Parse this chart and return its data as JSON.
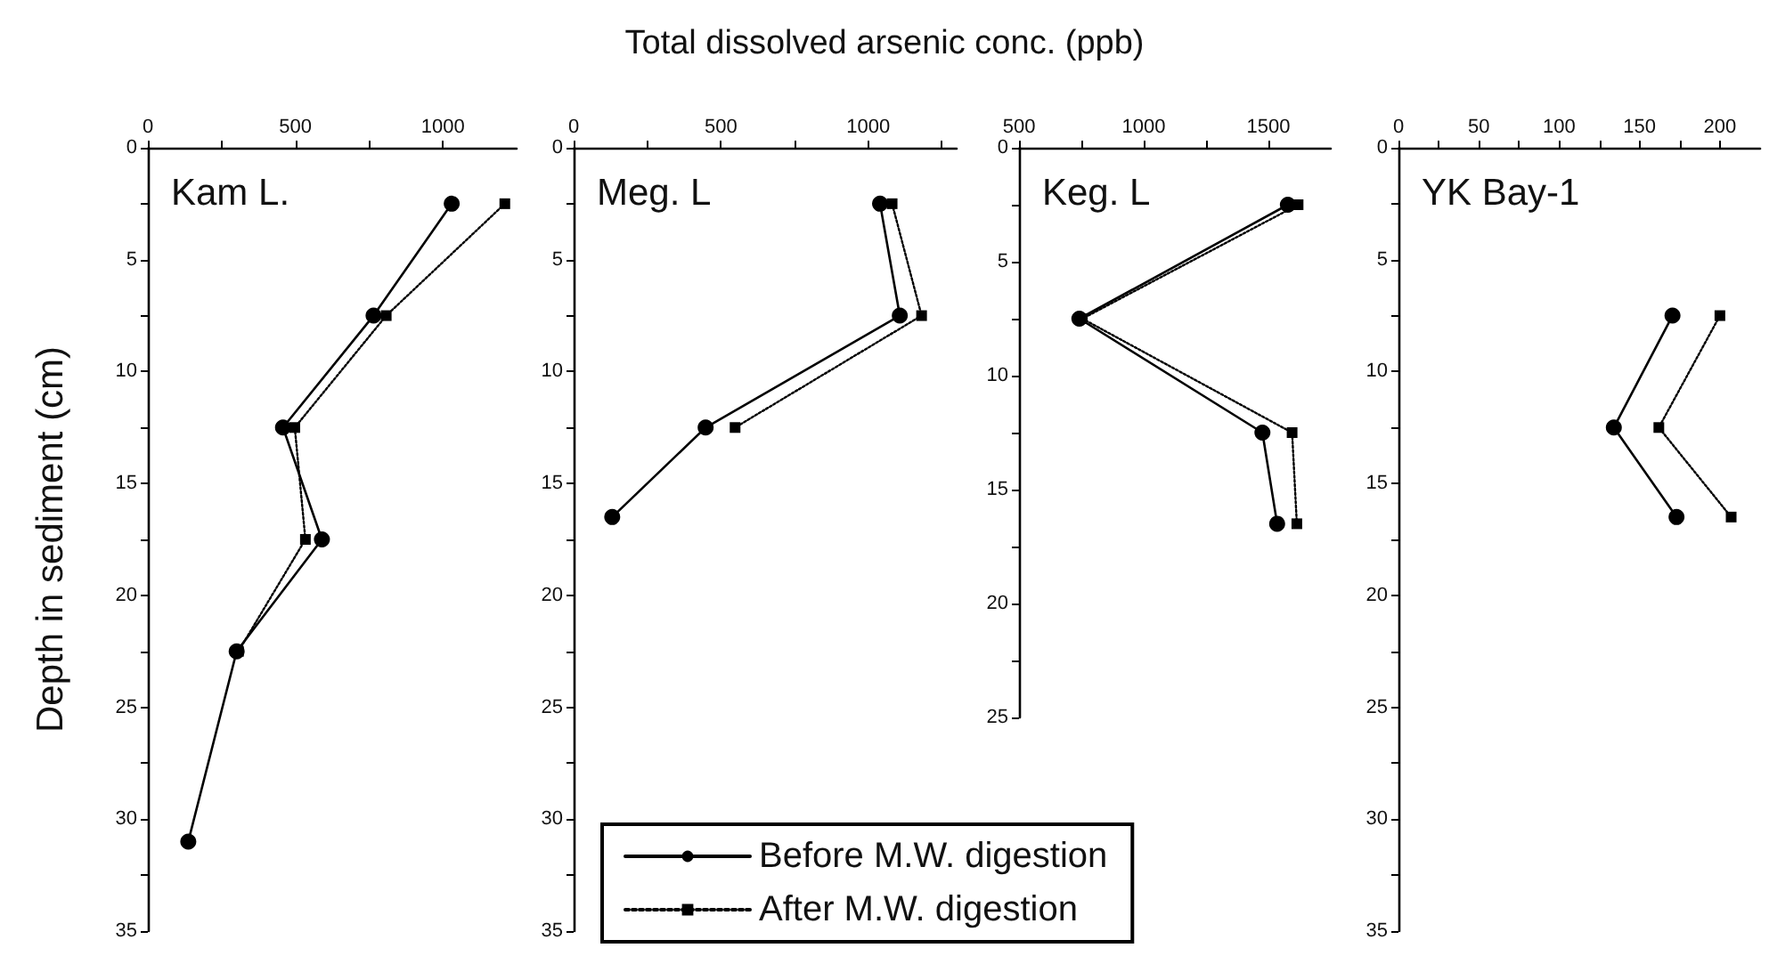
{
  "chart_data": [
    {
      "type": "line",
      "title": "Kam L.",
      "xlabel": "Total dissolved arsenic conc. (ppb)",
      "ylabel": "Depth in sediment (cm)",
      "xlim": [
        0,
        1250
      ],
      "xticks": [
        0,
        {
          "value": 250,
          "label": null
        },
        500,
        {
          "value": 750,
          "label": null
        },
        1000
      ],
      "ylim": [
        35,
        0
      ],
      "yticks": [
        0,
        {
          "value": 2.5,
          "label": null
        },
        5,
        {
          "value": 7.5,
          "label": null
        },
        10,
        {
          "value": 12.5,
          "label": null
        },
        15,
        {
          "value": 17.5,
          "label": null
        },
        20,
        {
          "value": 22.5,
          "label": null
        },
        25,
        {
          "value": 27.5,
          "label": null
        },
        30,
        {
          "value": 32.5,
          "label": null
        },
        35
      ],
      "series": [
        {
          "color": "#000000",
          "marker": "circle",
          "line_style": "solid",
          "x": [
            1030,
            765,
            458,
            590,
            301,
            137
          ],
          "values": [
            2.5,
            7.5,
            12.5,
            17.5,
            22.5,
            31
          ]
        },
        {
          "color": "#000000",
          "marker": "square",
          "line_style": "dotted",
          "x": [
            1210,
            808,
            498,
            534,
            307
          ],
          "values": [
            2.5,
            7.5,
            12.5,
            17.5,
            22.5
          ]
        }
      ]
    },
    {
      "type": "line",
      "title": "Meg. L",
      "legend": "bottom right",
      "xlim": [
        0,
        1300
      ],
      "xticks": [
        0,
        {
          "value": 250,
          "label": null
        },
        500,
        {
          "value": 750,
          "label": null
        },
        1000,
        {
          "value": 1250,
          "label": null
        }
      ],
      "ylim": [
        35,
        0
      ],
      "yticks": [
        0,
        {
          "value": 2.5,
          "label": null
        },
        5,
        {
          "value": 7.5,
          "label": null
        },
        10,
        {
          "value": 12.5,
          "label": null
        },
        15,
        {
          "value": 17.5,
          "label": null
        },
        20,
        {
          "value": 22.5,
          "label": null
        },
        25,
        {
          "value": 27.5,
          "label": null
        },
        30,
        {
          "value": 32.5,
          "label": null
        },
        35
      ],
      "series": [
        {
          "name": "Before M.W. digestion",
          "color": "#000000",
          "marker": "circle",
          "line_style": "solid",
          "x": [
            1040,
            1107,
            448,
            131
          ],
          "values": [
            2.5,
            7.5,
            12.5,
            16.5
          ]
        },
        {
          "name": "After M.W. digestion",
          "color": "#000000",
          "marker": "square",
          "line_style": "dotted",
          "x": [
            1081,
            1181,
            548
          ],
          "values": [
            2.5,
            7.5,
            12.5
          ]
        }
      ]
    },
    {
      "type": "line",
      "title": "Keg. L",
      "xlim": [
        500,
        1750
      ],
      "xticks": [
        500,
        {
          "value": 750,
          "label": null
        },
        1000,
        {
          "value": 1250,
          "label": null
        },
        1500
      ],
      "ylim": [
        25,
        0
      ],
      "yticks": [
        0,
        {
          "value": 2.5,
          "label": null
        },
        5,
        {
          "value": 7.5,
          "label": null
        },
        10,
        {
          "value": 12.5,
          "label": null
        },
        15,
        {
          "value": 17.5,
          "label": null
        },
        20,
        {
          "value": 22.5,
          "label": null
        },
        25
      ],
      "series": [
        {
          "color": "#000000",
          "marker": "circle",
          "line_style": "solid",
          "x": [
            1578,
            742,
            1476,
            1535
          ],
          "values": [
            2.5,
            7.5,
            12.5,
            16.5
          ]
        },
        {
          "color": "#000000",
          "marker": "square",
          "line_style": "dotted",
          "x": [
            1619,
            754,
            1595,
            1614
          ],
          "values": [
            2.5,
            7.5,
            12.5,
            16.5
          ]
        }
      ]
    },
    {
      "type": "line",
      "title": "YK Bay-1",
      "xlim": [
        0,
        225
      ],
      "xticks": [
        0,
        {
          "value": 25,
          "label": null
        },
        50,
        {
          "value": 75,
          "label": null
        },
        100,
        {
          "value": 125,
          "label": null
        },
        150,
        {
          "value": 175,
          "label": null
        },
        200
      ],
      "ylim": [
        35,
        0
      ],
      "yticks": [
        0,
        {
          "value": 2.5,
          "label": null
        },
        5,
        {
          "value": 7.5,
          "label": null
        },
        10,
        {
          "value": 12.5,
          "label": null
        },
        15,
        {
          "value": 17.5,
          "label": null
        },
        20,
        {
          "value": 22.5,
          "label": null
        },
        25,
        {
          "value": 27.5,
          "label": null
        },
        30,
        {
          "value": 32.5,
          "label": null
        },
        35
      ],
      "series": [
        {
          "color": "#000000",
          "marker": "circle",
          "line_style": "solid",
          "x": [
            170.5,
            134,
            173
          ],
          "values": [
            7.5,
            12.5,
            16.5
          ]
        },
        {
          "color": "#000000",
          "marker": "square",
          "line_style": "dotted",
          "x": [
            200,
            162,
            207
          ],
          "values": [
            7.5,
            12.5,
            16.5
          ]
        }
      ]
    }
  ]
}
